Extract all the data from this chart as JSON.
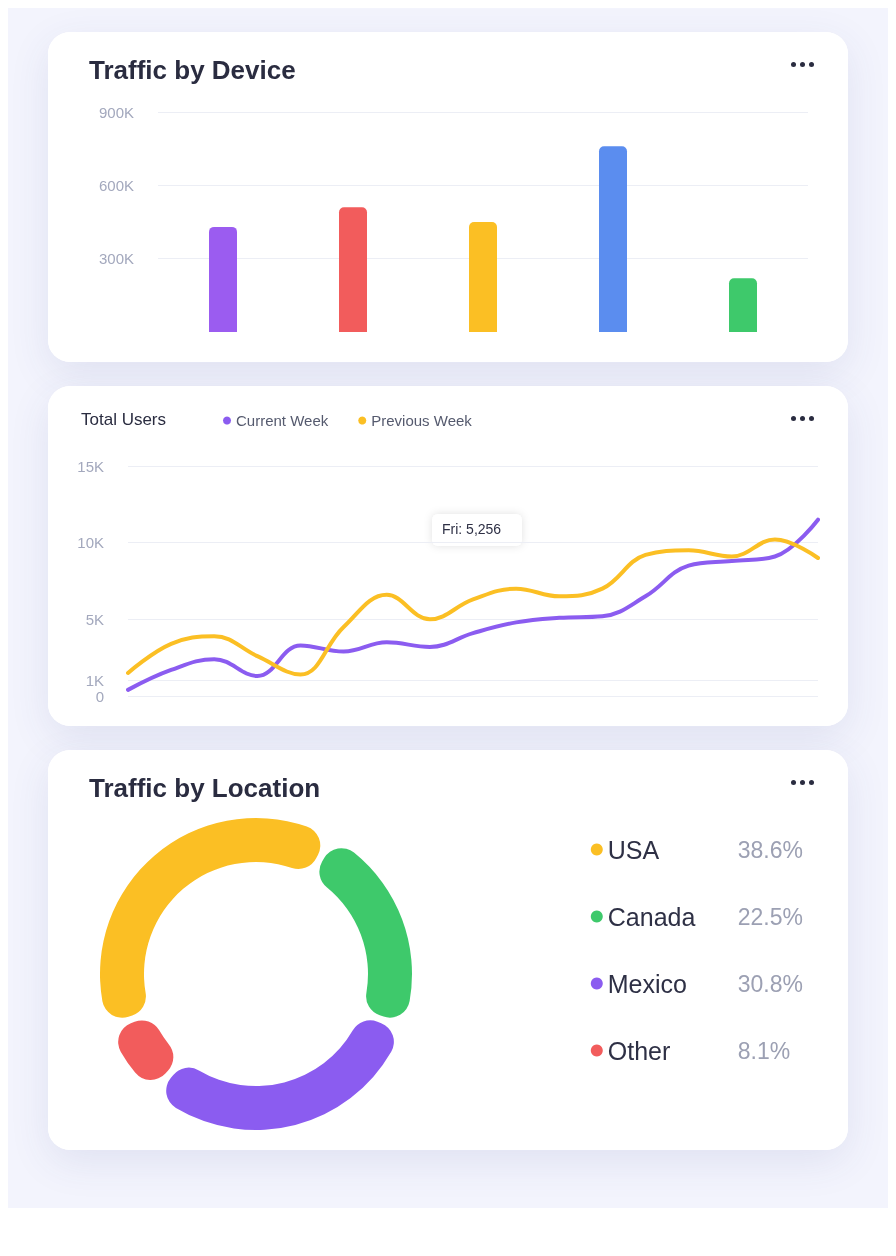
{
  "chart_data": [
    {
      "type": "bar",
      "title": "Traffic by Device",
      "categories": [
        null,
        null,
        null,
        null,
        null
      ],
      "values": [
        430000,
        510000,
        450000,
        760000,
        220000
      ],
      "colors": [
        "#9b5cf0",
        "#f25c5c",
        "#fbbf24",
        "#5b8def",
        "#3ec96b"
      ],
      "ylim": [
        0,
        900000
      ],
      "yticks": [
        {
          "value": 300000,
          "label": "300K"
        },
        {
          "value": 600000,
          "label": "600K"
        },
        {
          "value": 900000,
          "label": "900K"
        }
      ],
      "grid": "y",
      "tick_labels": "y"
    },
    {
      "type": "line",
      "title": "Total Users",
      "categories": [
        null,
        null,
        null,
        null,
        null,
        null,
        null,
        null,
        null,
        null,
        null,
        null,
        null,
        null,
        null,
        null,
        null
      ],
      "series": [
        {
          "name": "Current Week",
          "color": "#8b5cf0",
          "values": [
            400,
            1700,
            2400,
            1300,
            3300,
            2900,
            3500,
            3200,
            4100,
            4800,
            5100,
            5200,
            6500,
            8500,
            8800,
            9100,
            11500
          ]
        },
        {
          "name": "Previous Week",
          "color": "#fbbf24",
          "values": [
            1500,
            3400,
            3900,
            2600,
            1400,
            4500,
            6600,
            5000,
            6300,
            7000,
            6500,
            7000,
            9200,
            9500,
            9100,
            10200,
            9000
          ]
        }
      ],
      "ylim": [
        0,
        15000
      ],
      "yticks": [
        {
          "value": 0,
          "label": "0"
        },
        {
          "value": 1000,
          "label": "1K"
        },
        {
          "value": 5000,
          "label": "5K"
        },
        {
          "value": 10000,
          "label": "10K"
        },
        {
          "value": 15000,
          "label": "15K"
        }
      ],
      "grid": "y",
      "tick_labels": "y",
      "legend": "top",
      "marker": "none",
      "line_style": "solid",
      "annotations": [
        "Fri: 5,256"
      ]
    },
    {
      "type": "donut",
      "title": "Traffic by Location",
      "categories": [
        "USA",
        "Canada",
        "Mexico",
        "Other"
      ],
      "values": [
        38.6,
        22.5,
        30.8,
        8.1
      ],
      "colors": [
        "#fbbf24",
        "#3ec96b",
        "#8b5cf0",
        "#f25c5c"
      ],
      "value_labels": [
        "38.6%",
        "22.5%",
        "30.8%",
        "8.1%"
      ],
      "legend": "right"
    }
  ]
}
